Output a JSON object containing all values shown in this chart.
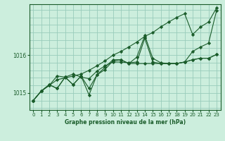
{
  "background_color": "#cceedd",
  "grid_color": "#99ccbb",
  "line_color": "#1a5c2a",
  "title": "Graphe pression niveau de la mer (hPa)",
  "xlim": [
    -0.5,
    23.5
  ],
  "ylim": [
    1014.55,
    1017.35
  ],
  "yticks": [
    1015,
    1016
  ],
  "xticks": [
    0,
    1,
    2,
    3,
    4,
    5,
    6,
    7,
    8,
    9,
    10,
    11,
    12,
    13,
    14,
    15,
    16,
    17,
    18,
    19,
    20,
    21,
    22,
    23
  ],
  "series": [
    [
      1014.8,
      1015.05,
      1015.2,
      1015.35,
      1015.4,
      1015.45,
      1015.5,
      1015.6,
      1015.72,
      1015.85,
      1016.0,
      1016.1,
      1016.22,
      1016.35,
      1016.5,
      1016.6,
      1016.75,
      1016.88,
      1017.0,
      1017.1,
      1016.55,
      1016.75,
      1016.88,
      1017.25
    ],
    [
      1014.8,
      1015.05,
      1015.2,
      1015.45,
      1015.42,
      1015.5,
      1015.42,
      1015.38,
      1015.58,
      1015.72,
      1015.82,
      1015.82,
      1015.8,
      1015.82,
      1016.45,
      1015.82,
      1015.78,
      1015.78,
      1015.78,
      1015.82,
      1016.1,
      1016.22,
      1016.32,
      1017.18
    ],
    [
      1014.8,
      1015.05,
      1015.22,
      1015.12,
      1015.42,
      1015.22,
      1015.45,
      1015.12,
      1015.48,
      1015.68,
      1015.88,
      1015.88,
      1015.78,
      1015.95,
      1016.52,
      1015.92,
      1015.8,
      1015.78,
      1015.78,
      1015.82,
      1015.88,
      1015.92,
      1015.92,
      1016.02
    ],
    [
      1014.8,
      1015.05,
      1015.22,
      1015.12,
      1015.42,
      1015.22,
      1015.45,
      1014.95,
      1015.48,
      1015.62,
      1015.85,
      1015.88,
      1015.78,
      1015.78,
      1015.78,
      1015.78,
      1015.78,
      1015.78,
      1015.78,
      1015.82,
      1015.88,
      1015.92,
      1015.92,
      1016.02
    ]
  ]
}
